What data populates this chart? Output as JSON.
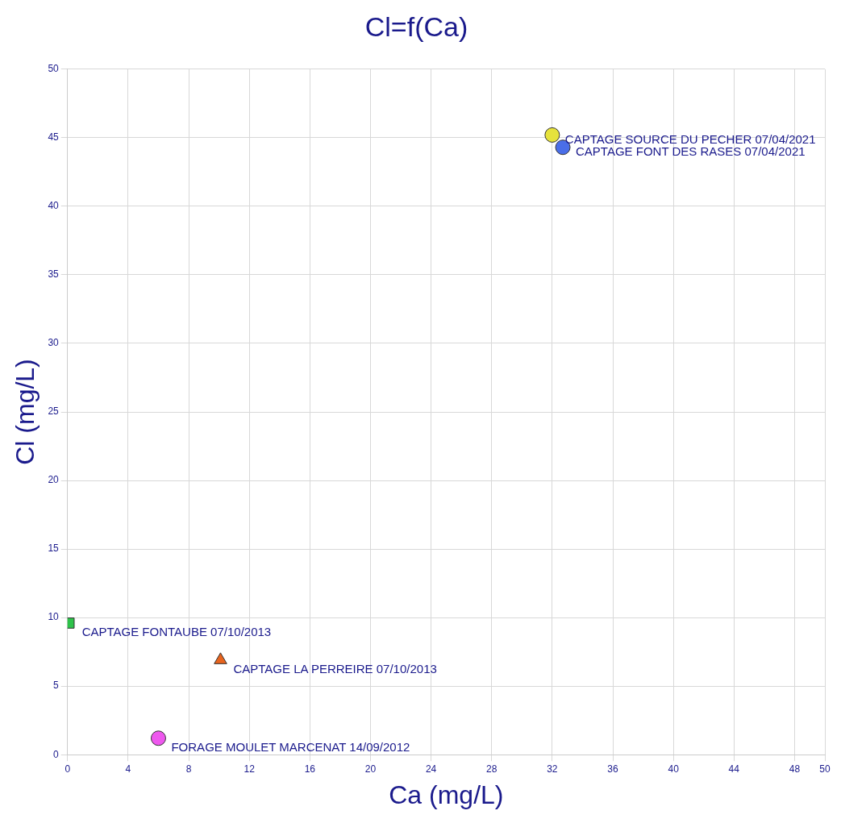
{
  "chart_data": {
    "type": "scatter",
    "title": "Cl=f(Ca)",
    "xlabel": "Ca (mg/L)",
    "ylabel": "Cl (mg/L)",
    "series": [
      {
        "name": "CAPTAGE SOURCE DU PECHER 07/04/2021",
        "color": "#e6e23c",
        "x": [
          32.0
        ],
        "values": [
          45.2
        ],
        "marker": "circle"
      },
      {
        "name": "CAPTAGE FONT DES RASES 07/04/2021",
        "color": "#4a6ee8",
        "x": [
          32.7
        ],
        "values": [
          44.3
        ],
        "marker": "circle"
      },
      {
        "name": "CAPTAGE FONTAUBE 07/10/2013",
        "color": "#2ec24a",
        "x": [
          0.1
        ],
        "values": [
          9.6
        ],
        "marker": "square"
      },
      {
        "name": "CAPTAGE LA PERREIRE 07/10/2013",
        "color": "#e8641e",
        "x": [
          10.1
        ],
        "values": [
          6.9
        ],
        "marker": "triangle"
      },
      {
        "name": "FORAGE MOULET MARCENAT 14/09/2012",
        "color": "#ee58ee",
        "x": [
          6.0
        ],
        "values": [
          1.2
        ],
        "marker": "circle"
      }
    ],
    "xlim": [
      0,
      50
    ],
    "xticks": [
      0,
      4,
      8,
      12,
      16,
      20,
      24,
      28,
      32,
      36,
      40,
      44,
      48,
      50
    ],
    "ylim": [
      0,
      50
    ],
    "yticks": [
      0,
      5,
      10,
      15,
      20,
      25,
      30,
      35,
      40,
      45,
      50
    ],
    "grid": true,
    "legend": false
  }
}
